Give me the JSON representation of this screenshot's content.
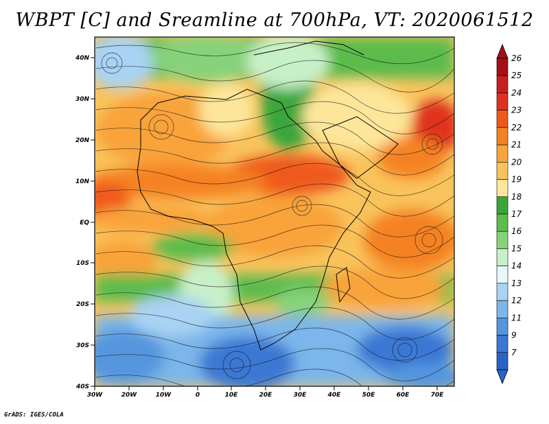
{
  "title": "WBPT [C] and Sreamline at 700hPa, VT: 2020061512",
  "credit": "GrADS: IGES/COLA",
  "lat_labels": [
    "40N",
    "30N",
    "20N",
    "10N",
    "EQ",
    "10S",
    "20S",
    "30S",
    "40S"
  ],
  "lon_labels": [
    "30W",
    "20W",
    "10W",
    "0",
    "10E",
    "20E",
    "30E",
    "40E",
    "50E",
    "60E",
    "70E"
  ],
  "colorbar": {
    "levels": [
      "26",
      "25",
      "24",
      "23",
      "22",
      "21",
      "20",
      "19",
      "18",
      "17",
      "16",
      "15",
      "14",
      "13",
      "12",
      "11",
      "9",
      "7"
    ],
    "colors": [
      "#a50f15",
      "#c8201e",
      "#e0301e",
      "#ef5a1b",
      "#f58220",
      "#f9a33a",
      "#f9c35c",
      "#fde69a",
      "#3aa63a",
      "#5cbc4c",
      "#86d27a",
      "#c8f0c8",
      "#e8f7fb",
      "#a9d3f3",
      "#7cb6ea",
      "#5596de",
      "#3a78d4",
      "#2a63c6"
    ]
  },
  "map": {
    "lon_range": [
      -30,
      75
    ],
    "lat_range": [
      -40,
      45
    ],
    "field": "wet-bulb potential temperature",
    "level": "700hPa",
    "overlay": "streamlines"
  }
}
